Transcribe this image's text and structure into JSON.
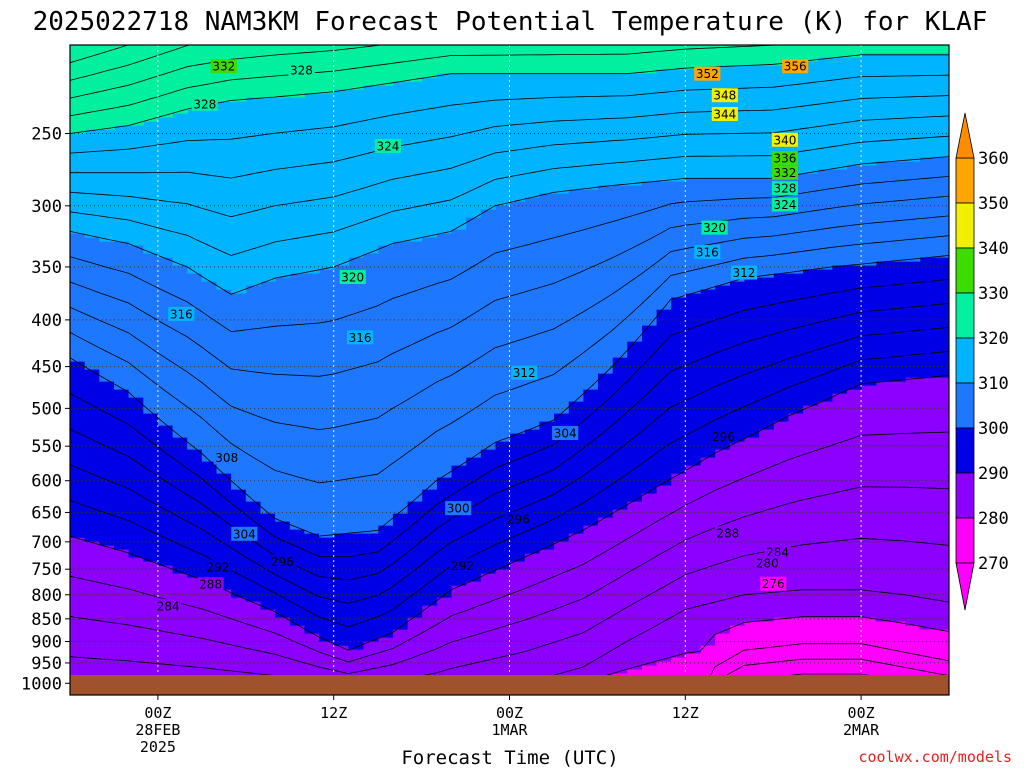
{
  "chart_data": {
    "type": "heatmap",
    "title": "2025022718 NAM3KM Forecast Potential Temperature (K) for KLAF",
    "xlabel": "Forecast Time (UTC)",
    "credit": "coolwx.com/models",
    "y_ticks": [
      "250",
      "300",
      "350",
      "400",
      "450",
      "500",
      "550",
      "600",
      "650",
      "700",
      "750",
      "800",
      "850",
      "900",
      "950",
      "1000"
    ],
    "y_axis": {
      "min": 200,
      "max": 1030,
      "scale": "log"
    },
    "x_axis": {
      "start_hour": 18,
      "end_hour": 78,
      "step_hours": 1
    },
    "x_ticks": [
      {
        "hour": 24,
        "lines": [
          "00Z",
          "28FEB",
          "2025"
        ]
      },
      {
        "hour": 36,
        "lines": [
          "12Z"
        ]
      },
      {
        "hour": 48,
        "lines": [
          "00Z",
          "1MAR"
        ]
      },
      {
        "hour": 60,
        "lines": [
          "12Z"
        ]
      },
      {
        "hour": 72,
        "lines": [
          "00Z",
          "2MAR"
        ]
      }
    ],
    "colorbar": {
      "labels": [
        "360",
        "350",
        "340",
        "330",
        "320",
        "310",
        "300",
        "290",
        "280",
        "270"
      ],
      "bands": [
        {
          "min": 270,
          "max": 280,
          "color": "#ff00ff"
        },
        {
          "min": 280,
          "max": 290,
          "color": "#8c00ff"
        },
        {
          "min": 290,
          "max": 300,
          "color": "#0000e6"
        },
        {
          "min": 300,
          "max": 310,
          "color": "#1e78ff"
        },
        {
          "min": 310,
          "max": 320,
          "color": "#00b4ff"
        },
        {
          "min": 320,
          "max": 330,
          "color": "#00f0a0"
        },
        {
          "min": 330,
          "max": 340,
          "color": "#3cdc00"
        },
        {
          "min": 340,
          "max": 350,
          "color": "#f0f000"
        },
        {
          "min": 350,
          "max": 360,
          "color": "#ffa500"
        }
      ]
    },
    "contour_interval_k": 2,
    "contour_labels": [
      {
        "text": "332",
        "hour": 28.5,
        "p": 211
      },
      {
        "text": "328",
        "hour": 33.8,
        "p": 213
      },
      {
        "text": "352",
        "hour": 61.5,
        "p": 215
      },
      {
        "text": "356",
        "hour": 67.5,
        "p": 211
      },
      {
        "text": "348",
        "hour": 62.7,
        "p": 227
      },
      {
        "text": "344",
        "hour": 62.7,
        "p": 238
      },
      {
        "text": "328",
        "hour": 27.2,
        "p": 232
      },
      {
        "text": "324",
        "hour": 39.7,
        "p": 258
      },
      {
        "text": "340",
        "hour": 66.8,
        "p": 254
      },
      {
        "text": "336",
        "hour": 66.8,
        "p": 266
      },
      {
        "text": "332",
        "hour": 66.8,
        "p": 276
      },
      {
        "text": "328",
        "hour": 66.8,
        "p": 287
      },
      {
        "text": "324",
        "hour": 66.8,
        "p": 299
      },
      {
        "text": "320",
        "hour": 62.0,
        "p": 317
      },
      {
        "text": "316",
        "hour": 61.5,
        "p": 337
      },
      {
        "text": "320",
        "hour": 37.3,
        "p": 359
      },
      {
        "text": "312",
        "hour": 64.0,
        "p": 355
      },
      {
        "text": "316",
        "hour": 25.6,
        "p": 394
      },
      {
        "text": "316",
        "hour": 37.8,
        "p": 418
      },
      {
        "text": "312",
        "hour": 49.0,
        "p": 457
      },
      {
        "text": "304",
        "hour": 51.8,
        "p": 532
      },
      {
        "text": "296",
        "hour": 62.6,
        "p": 537
      },
      {
        "text": "308",
        "hour": 28.7,
        "p": 566
      },
      {
        "text": "300",
        "hour": 44.5,
        "p": 643
      },
      {
        "text": "296",
        "hour": 48.6,
        "p": 661
      },
      {
        "text": "304",
        "hour": 29.9,
        "p": 686
      },
      {
        "text": "288",
        "hour": 62.9,
        "p": 685
      },
      {
        "text": "284",
        "hour": 66.3,
        "p": 718
      },
      {
        "text": "296",
        "hour": 32.5,
        "p": 736
      },
      {
        "text": "292",
        "hour": 28.1,
        "p": 746
      },
      {
        "text": "292",
        "hour": 44.8,
        "p": 743
      },
      {
        "text": "280",
        "hour": 65.6,
        "p": 738
      },
      {
        "text": "288",
        "hour": 27.6,
        "p": 779
      },
      {
        "text": "276",
        "hour": 66.0,
        "p": 778
      },
      {
        "text": "284",
        "hour": 24.7,
        "p": 823
      }
    ],
    "grid": true
  }
}
